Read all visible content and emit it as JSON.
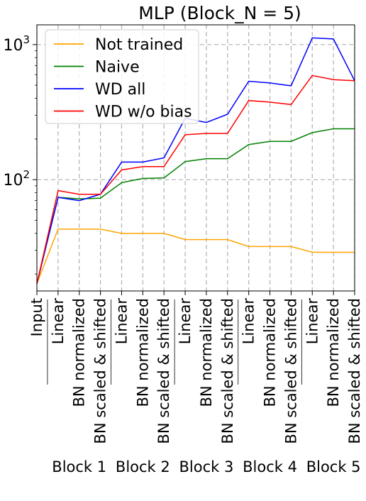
{
  "chart_data": {
    "type": "line",
    "title": "MLP (Block_N = 5)",
    "yscale": "log",
    "ylim": [
      15,
      1400
    ],
    "yticks": [
      {
        "value": 100,
        "base": "10",
        "exp": "2"
      },
      {
        "value": 1000,
        "base": "10",
        "exp": "3"
      }
    ],
    "grid": true,
    "legend_position": "top-left",
    "categories": [
      "Input",
      "Linear",
      "BN normalized",
      "BN scaled & shifted",
      "Linear",
      "BN normalized",
      "BN scaled & shifted",
      "Linear",
      "BN normalized",
      "BN scaled & shifted",
      "Linear",
      "BN normalized",
      "BN scaled & shifted",
      "Linear",
      "BN normalized",
      "BN scaled & shifted"
    ],
    "groups": [
      "Block 1",
      "Block 2",
      "Block 3",
      "Block 4",
      "Block 5"
    ],
    "series": [
      {
        "name": "Not trained",
        "color": "#ffa500",
        "values": [
          17,
          43,
          43,
          43,
          40,
          40,
          40,
          36,
          36,
          36,
          32,
          32,
          32,
          29,
          29,
          29
        ]
      },
      {
        "name": "Naive",
        "color": "#008000",
        "values": [
          17,
          74,
          72,
          73,
          95,
          102,
          103,
          136,
          143,
          143,
          182,
          192,
          192,
          223,
          238,
          238
        ]
      },
      {
        "name": "WD all",
        "color": "#0000ff",
        "values": [
          17,
          74,
          70,
          78,
          135,
          135,
          145,
          285,
          265,
          305,
          535,
          520,
          495,
          1120,
          1100,
          540
        ]
      },
      {
        "name": "WD w/o bias",
        "color": "#ff0000",
        "values": [
          17,
          83,
          78,
          78,
          118,
          125,
          125,
          215,
          220,
          220,
          385,
          375,
          360,
          590,
          550,
          540
        ]
      }
    ]
  }
}
